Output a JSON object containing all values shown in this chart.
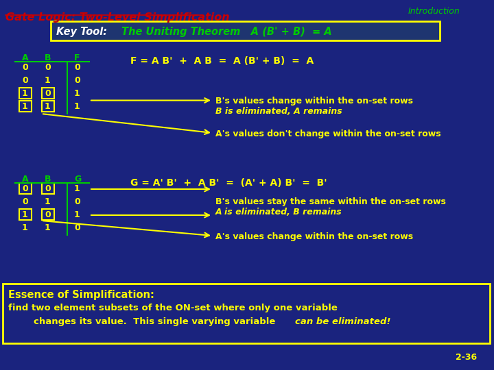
{
  "bg_color": "#1a237e",
  "title": "Gate Logic: Two-Level Simplification",
  "title_color": "#cc0000",
  "intro_text": "Introduction",
  "intro_color": "#009900",
  "key_tool_label": "Key Tool:",
  "key_tool_label_color": "#ffffff",
  "key_tool_text": " The Uniting Theorem   A (B' + B)  = A",
  "key_tool_text_color": "#00cc00",
  "yellow": "#ffff00",
  "green": "#00cc00",
  "white": "#ffffff",
  "red": "#cc0000",
  "table1_headers": [
    "A",
    "B",
    "F"
  ],
  "table1_data": [
    [
      "0",
      "0",
      "0"
    ],
    [
      "0",
      "1",
      "0"
    ],
    [
      "1",
      "0",
      "1"
    ],
    [
      "1",
      "1",
      "1"
    ]
  ],
  "table1_highlight_rows": [
    2,
    3
  ],
  "table2_headers": [
    "A",
    "B",
    "G"
  ],
  "table2_data": [
    [
      "0",
      "0",
      "1"
    ],
    [
      "0",
      "1",
      "0"
    ],
    [
      "1",
      "0",
      "1"
    ],
    [
      "1",
      "1",
      "0"
    ]
  ],
  "table2_highlight_rows": [
    0,
    2
  ],
  "f_equation": "F = A B'  +  A B  =  A (B' + B)  =  A",
  "g_equation": "G = A' B'  +  A B'  =  (A' + A) B'  =  B'",
  "b_changes": "B's values change within the on-set rows",
  "b_eliminated": "B is eliminated, A remains",
  "a_no_change": "A's values don't change within the on-set rows",
  "b_stays": "B's values stay the same within the on-set rows",
  "a_eliminated": "A is eliminated, B remains",
  "a_changes": "A's values change within the on-set rows",
  "essence_title": "Essence of Simplification:",
  "essence_line2": "find two element subsets of the ON-set where only one variable",
  "essence_line3_plain": "        changes its value.  This single varying variable ",
  "essence_line3_italic": "can be eliminated!",
  "page_num": "2-36"
}
